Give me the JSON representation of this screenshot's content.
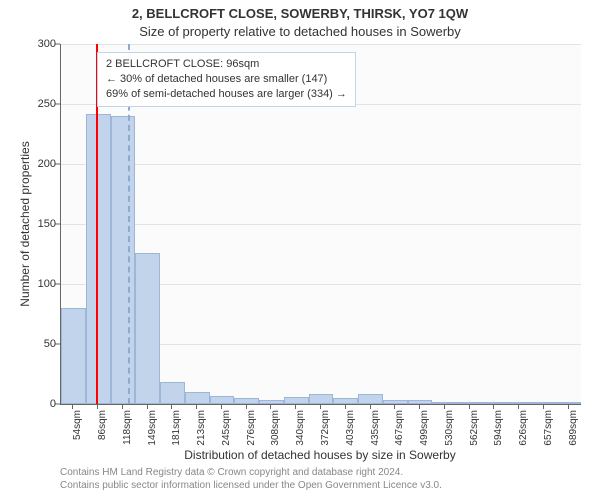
{
  "title": "2, BELLCROFT CLOSE, SOWERBY, THIRSK, YO7 1QW",
  "subtitle": "Size of property relative to detached houses in Sowerby",
  "chart": {
    "type": "histogram",
    "background_color": "#fbfbfb",
    "bar_fill": "#c2d4ec",
    "bar_border": "#9db7d9",
    "grid_color": "#e3e3e3",
    "axis_color": "#666666",
    "x_categories": [
      "54sqm",
      "86sqm",
      "118sqm",
      "149sqm",
      "181sqm",
      "213sqm",
      "245sqm",
      "276sqm",
      "308sqm",
      "340sqm",
      "372sqm",
      "403sqm",
      "435sqm",
      "467sqm",
      "499sqm",
      "530sqm",
      "562sqm",
      "594sqm",
      "626sqm",
      "657sqm",
      "689sqm"
    ],
    "values": [
      80,
      242,
      240,
      126,
      18,
      10,
      7,
      5,
      3,
      6,
      8,
      5,
      8,
      3,
      3,
      2,
      2,
      2,
      2,
      2,
      2
    ],
    "y_ticks": [
      0,
      50,
      100,
      150,
      200,
      250,
      300
    ],
    "ymax": 300,
    "label_fontsize": 12,
    "tick_fontsize": 11,
    "x_tick_fontsize": 10,
    "bar_gap_ratio": 0.0,
    "marker_line": {
      "index": 1,
      "offset": 0.4,
      "color": "#ff0000",
      "dash": false
    },
    "median_line": {
      "index": 2,
      "offset": 0.7,
      "color": "#8faacc",
      "dash": true
    },
    "annotation": {
      "lines": [
        "2 BELLCROFT CLOSE: 96sqm",
        "← 30% of detached houses are smaller (147)",
        "69% of semi-detached houses are larger (334) →"
      ],
      "border_color": "#c2d4ec",
      "background": "#ffffff",
      "fontsize": 11
    }
  },
  "y_axis_label": "Number of detached properties",
  "x_axis_label": "Distribution of detached houses by size in Sowerby",
  "footer": {
    "line1": "Contains HM Land Registry data © Crown copyright and database right 2024.",
    "line2": "Contains public sector information licensed under the Open Government Licence v3.0."
  }
}
